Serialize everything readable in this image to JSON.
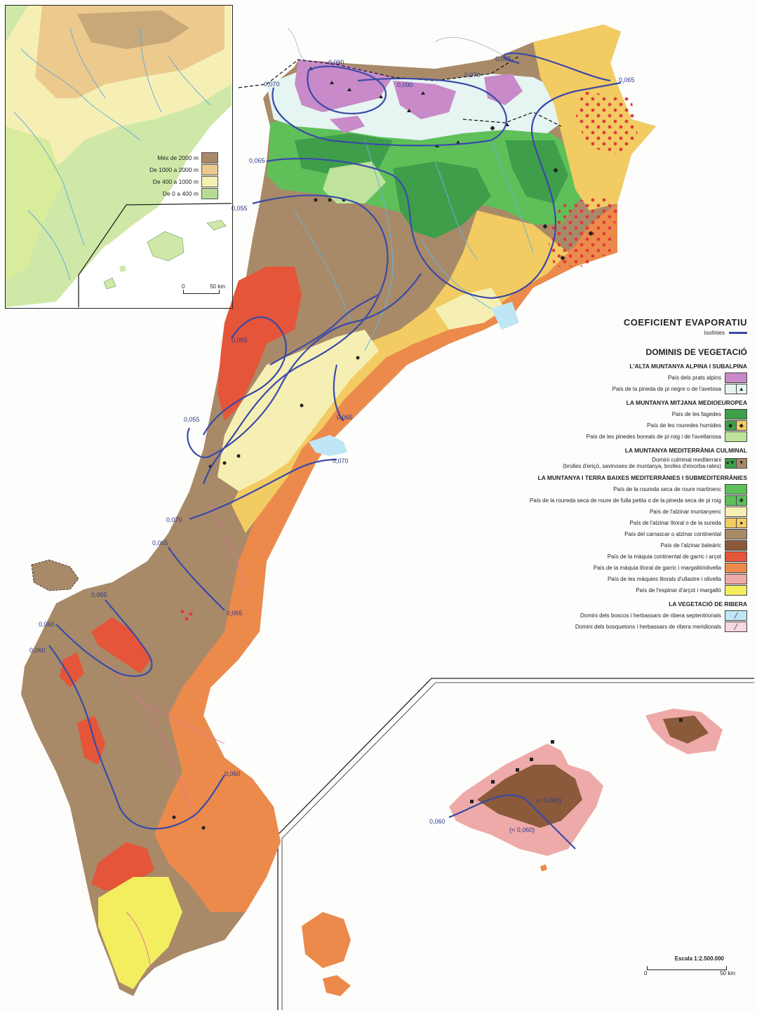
{
  "inset_relief": {
    "legend": [
      {
        "label": "Més de 2000 m",
        "color": "#a88a68"
      },
      {
        "label": "De 1000 a 2000 m",
        "color": "#ecc98c"
      },
      {
        "label": "De 400 a 1000 m",
        "color": "#f6efb4"
      },
      {
        "label": "De 0 a 400 m",
        "color": "#b6dc92"
      }
    ],
    "scale": {
      "zero": "0",
      "distance": "50 km"
    }
  },
  "legend": {
    "title": "COEFICIENT EVAPORATIU",
    "isolines_label": "Isolínies",
    "isoline_color": "#3a4aa8",
    "vegetation_title": "DOMINIS DE VEGETACIÓ",
    "sections": [
      {
        "heading": "L'ALTA MUNTANYA ALPINA I SUBALPINA",
        "items": [
          {
            "label": "País dels prats alpins",
            "colors": [
              "#c88ac8"
            ],
            "symbols": [
              ""
            ]
          },
          {
            "label": "País de la pineda de pi negre o de l'avetosa",
            "colors": [
              "#e6f4f2",
              "#e6f4f2"
            ],
            "symbols": [
              "",
              "▲"
            ]
          }
        ]
      },
      {
        "heading": "LA MUNTANYA MITJANA MEDIOEUROPEA",
        "items": [
          {
            "label": "País de les fagedes",
            "colors": [
              "#3f9e4a"
            ],
            "symbols": [
              ""
            ]
          },
          {
            "label": "País de les rouredes humides",
            "colors": [
              "#3f9e4a",
              "#f2cb62"
            ],
            "symbols": [
              "◆",
              "◆"
            ]
          },
          {
            "label": "País de les pinedes boreals de pi roig i de l'avellanosa",
            "colors": [
              "#bfe39a"
            ],
            "symbols": [
              ""
            ]
          }
        ]
      },
      {
        "heading": "LA MUNTANYA MEDITERRÀNIA CULMINAL",
        "items": [
          {
            "label": "Domini culminal mediterrani\n(brolles d'eriçó, savinoses de muntanya, brolles d'eixorba-rates)",
            "colors": [
              "#3f9e4a",
              "#a88a68"
            ],
            "symbols": [
              "●▼",
              "▼"
            ]
          }
        ]
      },
      {
        "heading": "LA MUNTANYA I TERRA BAIXES MEDITERRÀNIES I SUBMEDITERRÀNIES",
        "items": [
          {
            "label": "País de la roureda seca de roure martinenc",
            "colors": [
              "#5fc05a"
            ],
            "symbols": [
              ""
            ]
          },
          {
            "label": "País de la roureda seca de roure de fulla petita o de la pineda seca de pi roig",
            "colors": [
              "#5fc05a",
              "#5fc05a"
            ],
            "symbols": [
              "",
              "✱"
            ]
          },
          {
            "label": "País de l'alzinar muntanyenc",
            "colors": [
              "#f6efb4"
            ],
            "symbols": [
              ""
            ]
          },
          {
            "label": "País de l'alzinar litoral o de la sureda",
            "colors": [
              "#f2cb62",
              "#f2cb62"
            ],
            "symbols": [
              "",
              "●"
            ]
          },
          {
            "label": "País del carrascar o alzinar continental",
            "colors": [
              "#a88a68"
            ],
            "symbols": [
              ""
            ]
          },
          {
            "label": "País de l'alzinar baleàric",
            "colors": [
              "#8a5a3a"
            ],
            "symbols": [
              ""
            ]
          },
          {
            "label": "País de la màquia continental de garric i arçot",
            "colors": [
              "#e5553a"
            ],
            "symbols": [
              ""
            ]
          },
          {
            "label": "País de la màquia litoral de garric i margalló/olivella",
            "colors": [
              "#ec8a4c"
            ],
            "symbols": [
              ""
            ]
          },
          {
            "label": "País de les màquies litorals d'ullastre i olivella",
            "colors": [
              "#eeaaa8"
            ],
            "symbols": [
              ""
            ]
          },
          {
            "label": "País de l'espinar d'arçot i margalló",
            "colors": [
              "#f2ee60"
            ],
            "symbols": [
              ""
            ]
          }
        ]
      },
      {
        "heading": "LA VEGETACIÓ DE RIBERA",
        "items": [
          {
            "label": "Domini dels boscos i herbassars de ribera septentrionals",
            "colors": [
              "#bfe6f4"
            ],
            "symbols": [
              "╱"
            ]
          },
          {
            "label": "Domini dels bosquetons i herbassars de ribera meridionals",
            "colors": [
              "#f6d8e0"
            ],
            "symbols": [
              "╱"
            ]
          }
        ]
      }
    ]
  },
  "isolines": [
    "0,090",
    "0,090",
    "0,070",
    "0,070",
    "0,065",
    "0,065",
    "0,065",
    "0,055",
    "0,055",
    "0,055",
    "0,065",
    "0,070",
    "0,070",
    "0,065",
    "0,065",
    "0,065",
    "0,060",
    "0,060",
    "0,060",
    "(< 0,060)",
    "(< 0,060)",
    "0,060"
  ],
  "scale_main": {
    "label": "Escala 1:2.500.000",
    "zero": "0",
    "distance": "50 km"
  }
}
